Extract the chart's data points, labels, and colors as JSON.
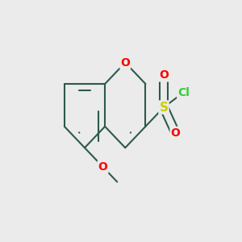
{
  "bg_color": "#ebebeb",
  "bond_color": "#2d5a4a",
  "bond_width": 1.5,
  "atom_colors": {
    "O": "#ff0000",
    "S": "#cccc00",
    "Cl": "#33cc33",
    "C": "#2d5a4a"
  },
  "font_size": 10,
  "figsize": [
    3.0,
    3.0
  ],
  "dpi": 100
}
